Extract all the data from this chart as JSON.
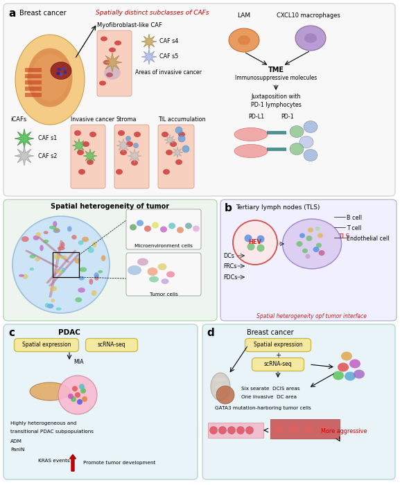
{
  "bg": "#ffffff",
  "pa_bg": "#f8f8f8",
  "pa_ec": "#cccccc",
  "pmid_bg": "#eef5ee",
  "pmid_ec": "#aaccaa",
  "pb_bg": "#f0f0ff",
  "pb_ec": "#aaaacc",
  "pc_bg": "#e8f4f8",
  "pc_ec": "#aacccc",
  "pd_bg": "#e8f4f8",
  "pd_ec": "#aacccc",
  "label_a": "a",
  "label_b": "b",
  "label_c": "c",
  "label_d": "d",
  "breast_cancer": "Breast cancer",
  "cafs_subtitle": "Spatially distinct subclasses of CAFs",
  "myofib": "Myofibroblast-like CAF",
  "cafs4": "CAF s4",
  "cafs5": "CAF s5",
  "areas": "Areas of invasive cancer",
  "icafs": "iCAFs",
  "cafs1": "CAF s1",
  "cafs2": "CAF s2",
  "inv_cancer": "Invasive cancer",
  "stroma": "Stroma",
  "til": "TIL accumulation",
  "lam": "LAM",
  "cxcl": "CXCL10 macrophages",
  "tme": "TME",
  "immuno": "Immunosuppressive molecules",
  "juxta": "Juxtaposition with",
  "pd1_lymph": "PD-1 lymphocytes",
  "pdl1": "PD-L1",
  "pd1": "PD-1",
  "spatial_het": "Spatial heterogeneity of tumor",
  "micro_cells": "Microenvironment cells",
  "tumor_cells": "Tumor cells",
  "tls_title": "Tertiary lymph nodes (TLS)",
  "hev": "HEV",
  "b_cell": "B cell",
  "t_cell": "T cell",
  "endo": "Endothelial cell",
  "dcs": "DCs",
  "frcs": "FRCs",
  "fdcs": "FDCs",
  "tls": "TLS",
  "spatial_het_int": "Spatial heterogeneity opf tumor interface",
  "pdac": "PDAC",
  "spatial_exp": "Spatial expression",
  "scrna": "scRNA-seq",
  "mia": "MIA",
  "hetero1": "Highly heterogeneous and",
  "hetero2": "transitional PDAC subpopulations",
  "adm": "ADM",
  "panin": "PanIN",
  "kras": "KRAS events",
  "promote": "Promote tumor development",
  "breast_cancer_d": "Breast cancer",
  "dcis1": "Six searate  DCIS areas",
  "dcis2": "One invasive  DC area",
  "gata3": "GATA3 mutation-harboring tumor cells",
  "aggressive": "More aggressive"
}
